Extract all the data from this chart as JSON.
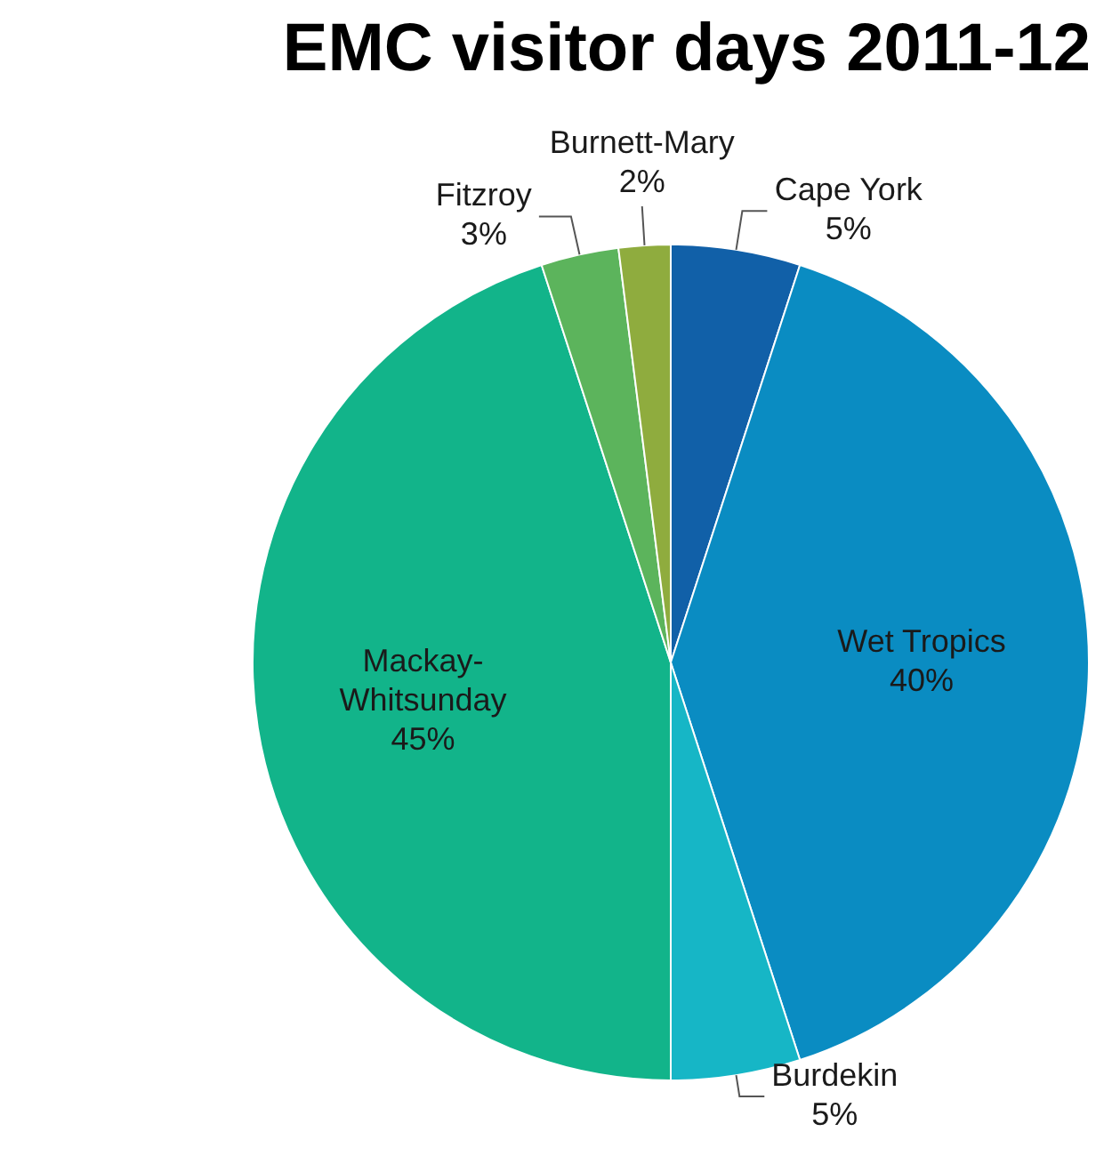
{
  "chart_data": {
    "type": "pie",
    "title": "EMC visitor days 2011-12",
    "categories": [
      "Cape York",
      "Wet Tropics",
      "Burdekin",
      "Mackay-Whitsunday",
      "Fitzroy",
      "Burnett-Mary"
    ],
    "values": [
      5,
      40,
      5,
      45,
      3,
      2
    ],
    "value_labels": [
      "5%",
      "40%",
      "5%",
      "45%",
      "3%",
      "2%"
    ],
    "colors": [
      "#1160a8",
      "#0a8cc2",
      "#16b6c6",
      "#12b48a",
      "#5cb45c",
      "#8fac3e"
    ],
    "legend": false
  }
}
